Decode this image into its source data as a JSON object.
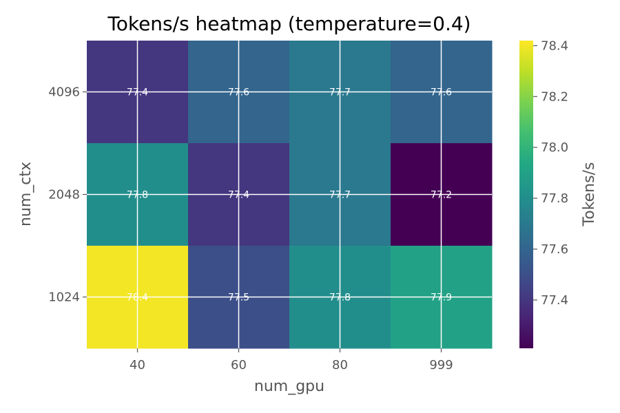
{
  "chart_data": {
    "type": "heatmap",
    "title": "Tokens/s heatmap (temperature=0.4)",
    "xlabel": "num_gpu",
    "ylabel": "num_ctx",
    "x_categories": [
      "40",
      "60",
      "80",
      "999"
    ],
    "y_categories": [
      "4096",
      "2048",
      "1024"
    ],
    "values": [
      [
        77.4,
        77.6,
        77.7,
        77.6
      ],
      [
        77.8,
        77.4,
        77.7,
        77.2
      ],
      [
        78.4,
        77.5,
        77.8,
        77.9
      ]
    ],
    "cell_labels": [
      [
        "77.4",
        "77.6",
        "77.7",
        "77.6"
      ],
      [
        "77.8",
        "77.4",
        "77.7",
        "77.2"
      ],
      [
        "78.4",
        "77.5",
        "77.8",
        "77.9"
      ]
    ],
    "colormap": "viridis",
    "color_range": [
      77.21,
      78.42
    ],
    "colorbar": {
      "label": "Tokens/s",
      "ticks": [
        77.4,
        77.6,
        77.8,
        78.0,
        78.2,
        78.4
      ],
      "tick_labels": [
        "77.4",
        "77.6",
        "77.8",
        "78.0",
        "78.2",
        "78.4"
      ]
    },
    "grid": true,
    "grid_color": "#ffffff",
    "cell_label_color": "#ffffff",
    "text_color": "#555555",
    "title_color": "#000000"
  }
}
